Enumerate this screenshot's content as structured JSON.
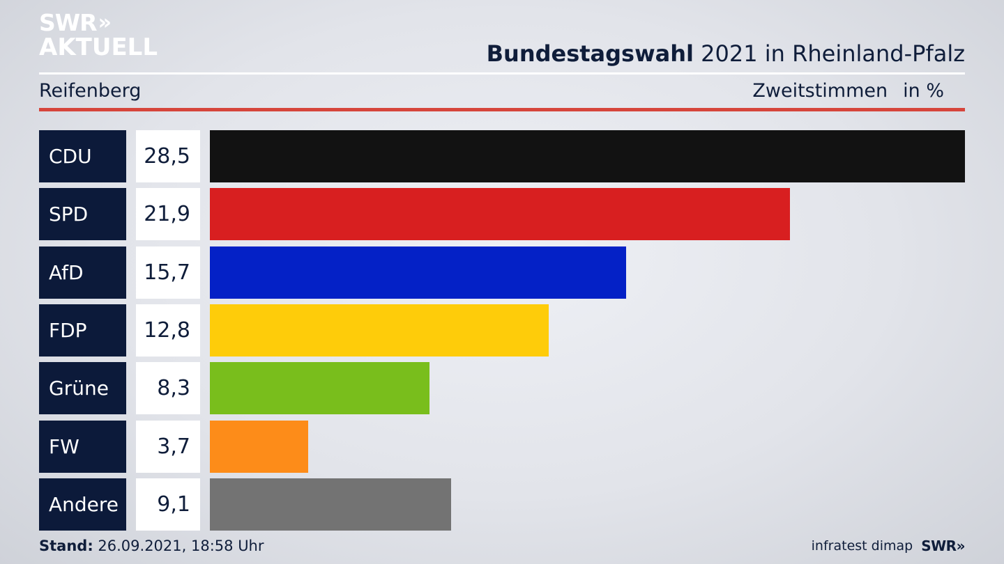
{
  "logo": {
    "line1": "SWR",
    "chevrons": "»",
    "line2": "AKTUELL"
  },
  "header": {
    "title_bold": "Bundestagswahl",
    "title_rest": "2021 in Rheinland-Pfalz",
    "location": "Reifenberg",
    "measure": "Zweitstimmen",
    "unit": "in %"
  },
  "chart_data": {
    "type": "bar",
    "orientation": "horizontal",
    "categories": [
      "CDU",
      "SPD",
      "AfD",
      "FDP",
      "Grüne",
      "FW",
      "Andere"
    ],
    "values": [
      28.5,
      21.9,
      15.7,
      12.8,
      8.3,
      3.7,
      9.1
    ],
    "value_labels": [
      "28,5",
      "21,9",
      "15,7",
      "12,8",
      "8,3",
      "3,7",
      "9,1"
    ],
    "colors": [
      "#121212",
      "#d81f20",
      "#0421c6",
      "#fecc0a",
      "#79be1c",
      "#fd8c19",
      "#737373"
    ],
    "xlim": [
      0,
      28.5
    ]
  },
  "footer": {
    "stand_label": "Stand:",
    "stand_value": "26.09.2021, 18:58 Uhr",
    "source": "infratest dimap",
    "brand": "SWR»"
  }
}
